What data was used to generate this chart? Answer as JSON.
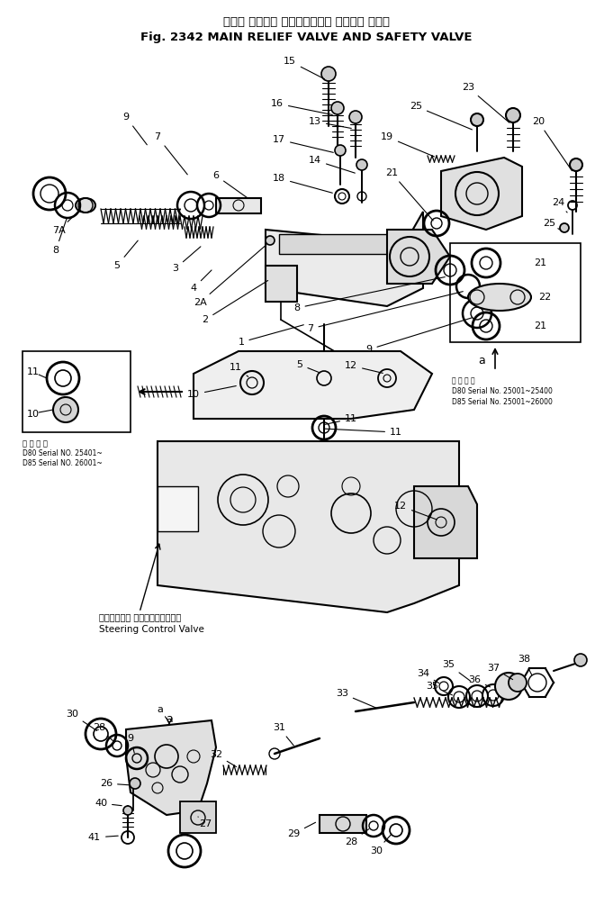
{
  "title_japanese": "メイン リリーフ バルブ　および セフティ バルブ",
  "title_english": "Fig. 2342 MAIN RELIEF VALVE AND SAFETY VALVE",
  "bg": "#ffffff",
  "fig_width": 6.81,
  "fig_height": 10.05,
  "dpi": 100,
  "steering_jp": "ステアリング コントロールバルブ",
  "steering_en": "Steering Control Valve",
  "inset1_note1": "D80 Serial NO. 25401~",
  "inset1_note2": "D85 Serial NO. 26001~",
  "inset1_notejp": "適 用 号 機",
  "inset2_note1": "D80 Serial No. 25001~25400",
  "inset2_note2": "D85 Serial No. 25001~26000",
  "inset2_notejp": "適 用 号 機"
}
